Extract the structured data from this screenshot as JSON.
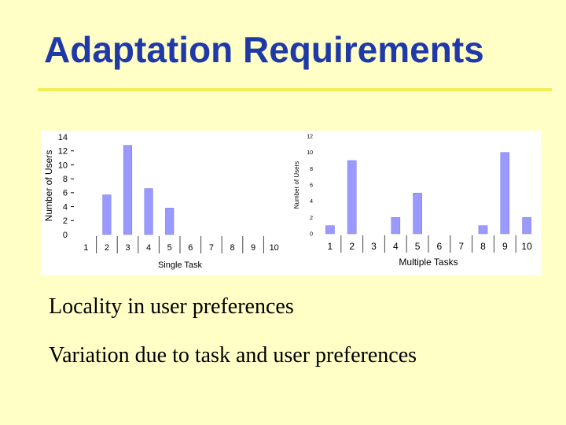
{
  "slide": {
    "title": "Adaptation Requirements",
    "rule_color": "#f0ec5a",
    "title_color": "#1f3aa8",
    "bullets": [
      "Locality in user preferences",
      "Variation due to task and user preferences"
    ]
  },
  "chart_data": [
    {
      "type": "bar",
      "xlabel": "Single Task",
      "ylabel": "Number of Users",
      "categories": [
        "1",
        "2",
        "3",
        "4",
        "5",
        "6",
        "7",
        "8",
        "9",
        "10"
      ],
      "values": [
        0,
        5.7,
        12.8,
        6.6,
        3.8,
        0,
        0,
        0,
        0,
        0
      ],
      "yticks": [
        "0",
        "2",
        "4",
        "6",
        "8",
        "10",
        "12",
        "14"
      ],
      "ylim": [
        0,
        14
      ],
      "bar_color": "#9999ff",
      "grid": false
    },
    {
      "type": "bar",
      "xlabel": "Multiple Tasks",
      "ylabel": "Number of Users",
      "categories": [
        "1",
        "2",
        "3",
        "4",
        "5",
        "6",
        "7",
        "8",
        "9",
        "10"
      ],
      "values": [
        1,
        9,
        0,
        2,
        5,
        0,
        0,
        1,
        10,
        2
      ],
      "yticks": [
        "0",
        "2",
        "4",
        "6",
        "8",
        "10",
        "12"
      ],
      "ylim": [
        0,
        12
      ],
      "bar_color": "#9999ff",
      "grid": false
    }
  ]
}
